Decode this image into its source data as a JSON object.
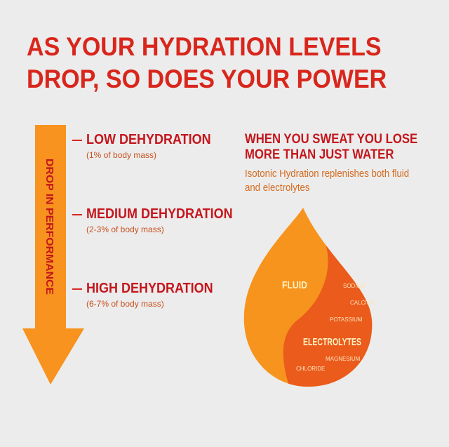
{
  "title": {
    "line1": "AS YOUR HYDRATION LEVELS",
    "line2": "DROP, SO DOES YOUR POWER"
  },
  "arrow": {
    "label": "DROP IN PERFORMANCE",
    "color": "#f7931e"
  },
  "levels": [
    {
      "name": "LOW DEHYDRATION",
      "detail": "(1% of body mass)"
    },
    {
      "name": "MEDIUM DEHYDRATION",
      "detail": "(2-3% of body mass)"
    },
    {
      "name": "HIGH DEHYDRATION",
      "detail": "(6-7% of body mass)"
    }
  ],
  "sweat": {
    "heading_line1": "WHEN YOU SWEAT YOU LOSE",
    "heading_line2": "MORE THAN JUST WATER",
    "sub_line1": "Isotonic Hydration replenishes both fluid",
    "sub_line2": "and electrolytes"
  },
  "drop": {
    "fluid_label": "FLUID",
    "electrolytes_label": "ELECTROLYTES",
    "minerals": [
      "SODIUM",
      "CALCIUM",
      "POTASSIUM",
      "MAGNESIUM",
      "CHLORIDE"
    ],
    "fluid_color": "#f7941d",
    "electrolytes_color": "#ea5b1c"
  },
  "colors": {
    "title_red": "#d9261c",
    "background": "#ececec"
  }
}
